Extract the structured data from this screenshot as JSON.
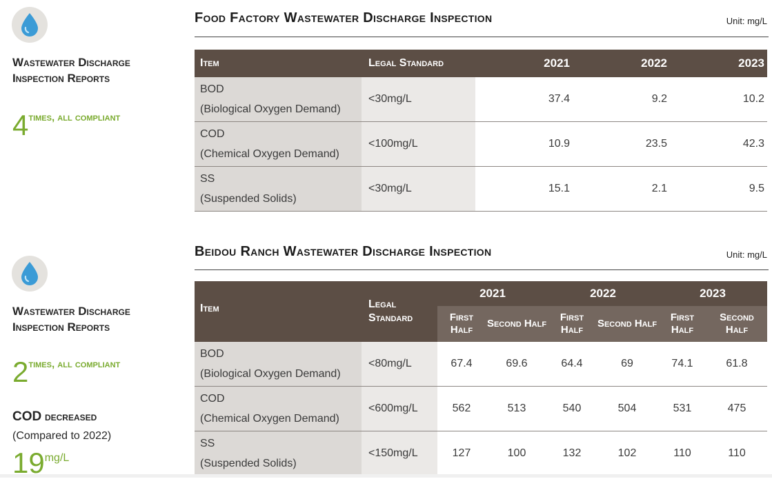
{
  "food": {
    "side_heading": "Wastewater Discharge Inspection Reports",
    "kpi_number": "4",
    "kpi_text": "times, all compliant",
    "title": "Food Factory Wastewater Discharge Inspection",
    "unit_note": "Unit: mg/L",
    "table": {
      "headers": [
        "Item",
        "Legal Standard",
        "2021",
        "2022",
        "2023"
      ],
      "rows": [
        {
          "item": "BOD",
          "item_sub": "(Biological Oxygen Demand)",
          "standard": "<30mg/L",
          "values": [
            "37.4",
            "9.2",
            "10.2"
          ]
        },
        {
          "item": "COD",
          "item_sub": "(Chemical Oxygen Demand)",
          "standard": "<100mg/L",
          "values": [
            "10.9",
            "23.5",
            "42.3"
          ]
        },
        {
          "item": "SS",
          "item_sub": "(Suspended Solids)",
          "standard": "<30mg/L",
          "values": [
            "15.1",
            "2.1",
            "9.5"
          ]
        }
      ]
    }
  },
  "ranch": {
    "side_heading": "Wastewater Discharge Inspection Reports",
    "kpi_number": "2",
    "kpi_text": "times, all compliant",
    "cod_heading_prefix": "COD",
    "cod_heading_rest": "decreased",
    "cod_compare": "(Compared to 2022)",
    "cod_number": "19",
    "cod_unit": "mg/L",
    "title": "Beidou Ranch Wastewater Discharge Inspection",
    "unit_note": "Unit: mg/L",
    "table": {
      "item_header": "Item",
      "standard_header": "Legal Standard",
      "years": [
        "2021",
        "2022",
        "2023"
      ],
      "half_first": "First Half",
      "half_second": "Second Half",
      "rows": [
        {
          "item": "BOD",
          "item_sub": "(Biological Oxygen Demand)",
          "standard": "<80mg/L",
          "values": [
            "67.4",
            "69.6",
            "64.4",
            "69",
            "74.1",
            "61.8"
          ]
        },
        {
          "item": "COD",
          "item_sub": "(Chemical Oxygen Demand)",
          "standard": "<600mg/L",
          "values": [
            "562",
            "513",
            "540",
            "504",
            "531",
            "475"
          ]
        },
        {
          "item": "SS",
          "item_sub": "(Suspended Solids)",
          "standard": "<150mg/L",
          "values": [
            "127",
            "100",
            "132",
            "102",
            "110",
            "110"
          ]
        }
      ]
    }
  },
  "colors": {
    "accent_green": "#7aab2f",
    "header_brown": "#5c4e45",
    "subheader_brown": "#74675f",
    "item_grey": "#dcd9d6",
    "standard_grey": "#ebe9e7",
    "drop_blue": "#3b9bd6"
  },
  "icons": [
    "water-drop-icon",
    "water-drop-icon"
  ]
}
